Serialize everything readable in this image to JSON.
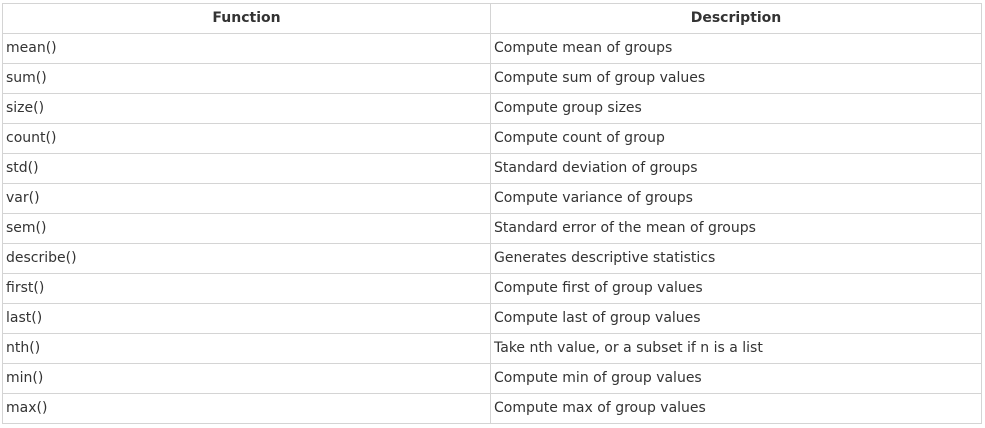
{
  "table": {
    "headers": [
      "Function",
      "Description"
    ],
    "rows": [
      [
        "mean()",
        "Compute mean of groups"
      ],
      [
        "sum()",
        "Compute sum of group values"
      ],
      [
        "size()",
        "Compute group sizes"
      ],
      [
        "count()",
        "Compute count of group"
      ],
      [
        "std()",
        "Standard deviation of groups"
      ],
      [
        "var()",
        "Compute variance of groups"
      ],
      [
        "sem()",
        "Standard error of the mean of groups"
      ],
      [
        "describe()",
        "Generates descriptive statistics"
      ],
      [
        "first()",
        "Compute first of group values"
      ],
      [
        "last()",
        "Compute last of group values"
      ],
      [
        "nth()",
        "Take nth value, or a subset if n is a list"
      ],
      [
        "min()",
        "Compute min of group values"
      ],
      [
        "max()",
        "Compute max of group values"
      ]
    ]
  }
}
